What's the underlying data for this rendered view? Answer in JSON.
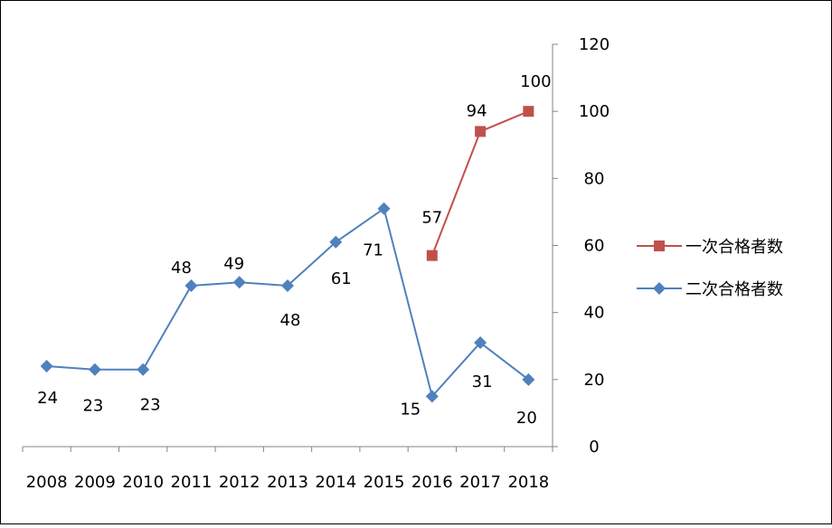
{
  "chart_data": {
    "type": "line",
    "categories": [
      "2008",
      "2009",
      "2010",
      "2011",
      "2012",
      "2013",
      "2014",
      "2015",
      "2016",
      "2017",
      "2018"
    ],
    "series": [
      {
        "name": "一次合格者数",
        "color": "#c0504d",
        "marker": "square",
        "values": [
          null,
          null,
          null,
          null,
          null,
          null,
          null,
          null,
          57,
          94,
          100
        ],
        "labels": [
          "",
          "",
          "",
          "",
          "",
          "",
          "",
          "",
          "57",
          "94",
          "100"
        ]
      },
      {
        "name": "二次合格者数",
        "color": "#4f81bd",
        "marker": "diamond",
        "values": [
          24,
          23,
          23,
          48,
          49,
          48,
          61,
          71,
          15,
          31,
          20
        ],
        "labels": [
          "24",
          "23",
          "23",
          "48",
          "49",
          "48",
          "61",
          "71",
          "15",
          "31",
          "20"
        ]
      }
    ],
    "y_axis": {
      "position": "right",
      "ylim": [
        0,
        120
      ],
      "ticks": [
        0,
        20,
        40,
        60,
        80,
        100,
        120
      ],
      "tick_labels": [
        "0",
        "20",
        "40",
        "60",
        "80",
        "100",
        "120"
      ]
    },
    "title": "",
    "xlabel": "",
    "ylabel": "",
    "grid": false,
    "legend": "right"
  }
}
